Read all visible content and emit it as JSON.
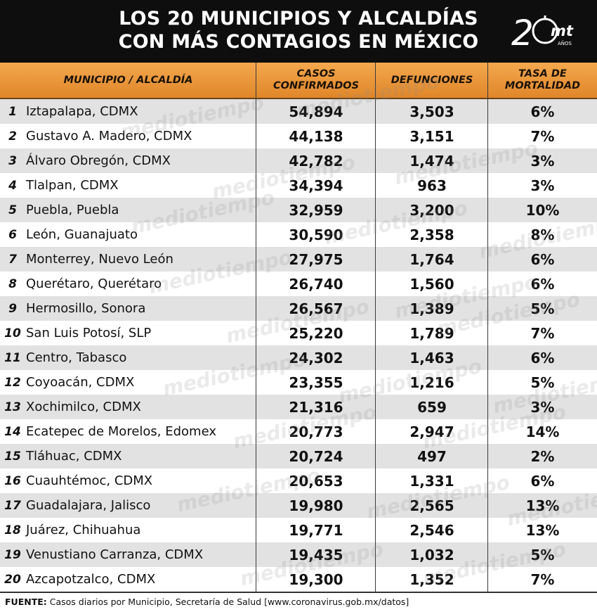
{
  "title": {
    "line1": "LOS 20 MUNICIPIOS Y ALCALDÍAS",
    "line2": "CON MÁS CONTAGIOS EN MÉXICO"
  },
  "logo": {
    "number": "2",
    "mark": "mt",
    "sub": "AÑOS"
  },
  "columns": {
    "municipio": "MUNICIPIO / ALCALDÍA",
    "casos_line1": "CASOS",
    "casos_line2": "CONFIRMADOS",
    "defunciones": "DEFUNCIONES",
    "tasa_line1": "TASA DE",
    "tasa_line2": "MORTALIDAD"
  },
  "rows": [
    {
      "rank": "1",
      "name": "Iztapalapa, CDMX",
      "cases": "54,894",
      "deaths": "3,503",
      "rate": "6%"
    },
    {
      "rank": "2",
      "name": "Gustavo A. Madero, CDMX",
      "cases": "44,138",
      "deaths": "3,151",
      "rate": "7%"
    },
    {
      "rank": "3",
      "name": "Álvaro Obregón, CDMX",
      "cases": "42,782",
      "deaths": "1,474",
      "rate": "3%"
    },
    {
      "rank": "4",
      "name": "Tlalpan, CDMX",
      "cases": "34,394",
      "deaths": "963",
      "rate": "3%"
    },
    {
      "rank": "5",
      "name": "Puebla, Puebla",
      "cases": "32,959",
      "deaths": "3,200",
      "rate": "10%"
    },
    {
      "rank": "6",
      "name": "León, Guanajuato",
      "cases": "30,590",
      "deaths": "2,358",
      "rate": "8%"
    },
    {
      "rank": "7",
      "name": "Monterrey, Nuevo León",
      "cases": "27,975",
      "deaths": "1,764",
      "rate": "6%"
    },
    {
      "rank": "8",
      "name": "Querétaro, Querétaro",
      "cases": "26,740",
      "deaths": "1,560",
      "rate": "6%"
    },
    {
      "rank": "9",
      "name": "Hermosillo, Sonora",
      "cases": "26,567",
      "deaths": "1,389",
      "rate": "5%"
    },
    {
      "rank": "10",
      "name": "San Luis Potosí, SLP",
      "cases": "25,220",
      "deaths": "1,789",
      "rate": "7%"
    },
    {
      "rank": "11",
      "name": "Centro, Tabasco",
      "cases": "24,302",
      "deaths": "1,463",
      "rate": "6%"
    },
    {
      "rank": "12",
      "name": "Coyoacán, CDMX",
      "cases": "23,355",
      "deaths": "1,216",
      "rate": "5%"
    },
    {
      "rank": "13",
      "name": "Xochimilco, CDMX",
      "cases": "21,316",
      "deaths": "659",
      "rate": "3%"
    },
    {
      "rank": "14",
      "name": "Ecatepec de Morelos, Edomex",
      "cases": "20,773",
      "deaths": "2,947",
      "rate": "14%"
    },
    {
      "rank": "15",
      "name": "Tláhuac, CDMX",
      "cases": "20,724",
      "deaths": "497",
      "rate": "2%"
    },
    {
      "rank": "16",
      "name": "Cuauhtémoc, CDMX",
      "cases": "20,653",
      "deaths": "1,331",
      "rate": "6%"
    },
    {
      "rank": "17",
      "name": "Guadalajara, Jalisco",
      "cases": "19,980",
      "deaths": "2,565",
      "rate": "13%"
    },
    {
      "rank": "18",
      "name": "Juárez, Chihuahua",
      "cases": "19,771",
      "deaths": "2,546",
      "rate": "13%"
    },
    {
      "rank": "19",
      "name": "Venustiano Carranza, CDMX",
      "cases": "19,435",
      "deaths": "1,032",
      "rate": "5%"
    },
    {
      "rank": "20",
      "name": "Azcapotzalco, CDMX",
      "cases": "19,300",
      "deaths": "1,352",
      "rate": "7%"
    }
  ],
  "watermark": "mediotiempo",
  "footer": {
    "label": "FUENTE:",
    "text": " Casos diarios por Municipio, Secretaría de Salud [www.coronavirus.gob.mx/datos]"
  },
  "colors": {
    "header_bg": "#0e0e0e",
    "column_header": "#eb9a3e",
    "row_alt": "#e2e2e2"
  }
}
